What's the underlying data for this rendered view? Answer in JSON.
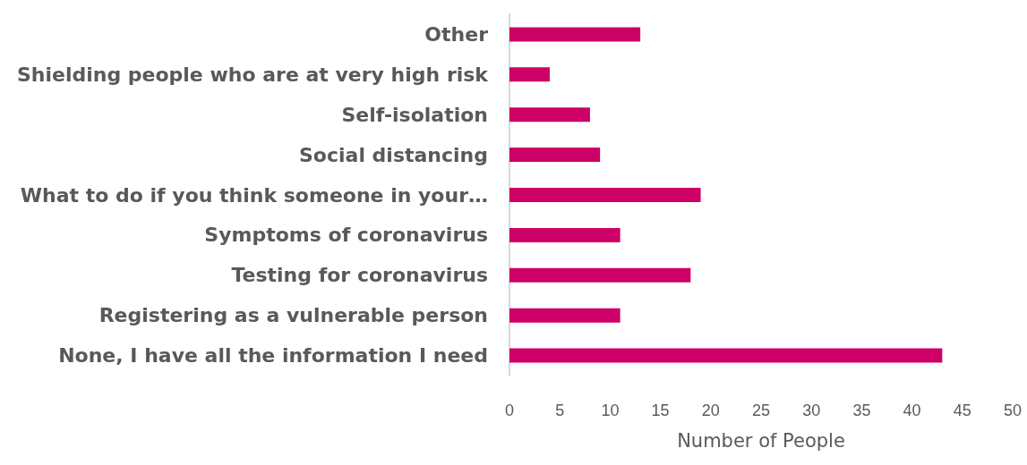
{
  "chart_data": {
    "type": "bar",
    "orientation": "horizontal",
    "xlabel": "Number of People",
    "categories": [
      "Other",
      "Shielding people who are at very high risk",
      "Self-isolation",
      "Social distancing",
      "What to do if you think someone in your…",
      "Symptoms of coronavirus",
      "Testing for coronavirus",
      "Registering as a vulnerable person",
      "None, I have all the information I need"
    ],
    "values": [
      13,
      4,
      8,
      9,
      19,
      11,
      18,
      11,
      43
    ],
    "color": "#cc0066",
    "xlim": [
      0,
      50
    ],
    "xticks": [
      0,
      5,
      10,
      15,
      20,
      25,
      30,
      35,
      40,
      45,
      50
    ],
    "grid": false
  }
}
